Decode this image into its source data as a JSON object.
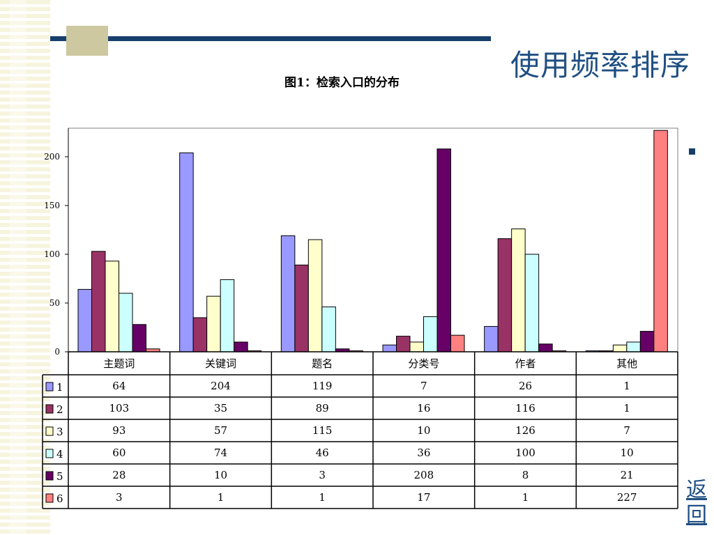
{
  "slide": {
    "title": "使用频率排序",
    "back_label": "返回"
  },
  "chart_data": {
    "type": "bar",
    "title": "图1：检索入口的分布",
    "categories": [
      "主题词",
      "关键词",
      "题名",
      "分类号",
      "作者",
      "其他"
    ],
    "series": [
      {
        "name": "1",
        "color": "#9999ff",
        "values": [
          64,
          204,
          119,
          7,
          26,
          1
        ]
      },
      {
        "name": "2",
        "color": "#993366",
        "values": [
          103,
          35,
          89,
          16,
          116,
          1
        ]
      },
      {
        "name": "3",
        "color": "#ffffcc",
        "values": [
          93,
          57,
          115,
          10,
          126,
          7
        ]
      },
      {
        "name": "4",
        "color": "#ccffff",
        "values": [
          60,
          74,
          46,
          36,
          100,
          10
        ]
      },
      {
        "name": "5",
        "color": "#660066",
        "values": [
          28,
          10,
          3,
          208,
          8,
          21
        ]
      },
      {
        "name": "6",
        "color": "#ff8080",
        "values": [
          3,
          1,
          1,
          17,
          1,
          227
        ]
      }
    ],
    "yticks": [
      "0",
      "50",
      "100",
      "150",
      "200"
    ],
    "ylim": [
      0,
      230
    ],
    "grid": false,
    "legend": "data-table"
  }
}
